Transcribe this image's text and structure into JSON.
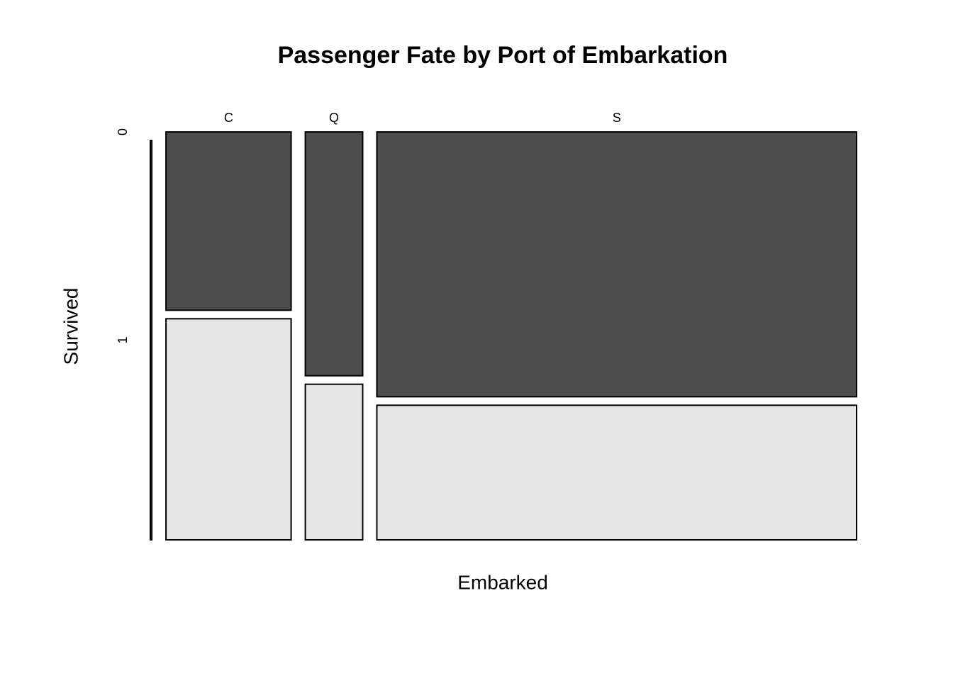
{
  "chart_data": {
    "type": "mosaic",
    "title": "Passenger Fate by Port of Embarkation",
    "x_label": "Embarked",
    "y_label": "Survived",
    "categories": [
      null,
      "C",
      "Q",
      "S"
    ],
    "series": [
      {
        "name": "0",
        "color": "#4d4d4d",
        "values": [
          0,
          75,
          47,
          427
        ]
      },
      {
        "name": "1",
        "color": "#e6e6e6",
        "values": [
          2,
          93,
          30,
          217
        ]
      }
    ]
  }
}
